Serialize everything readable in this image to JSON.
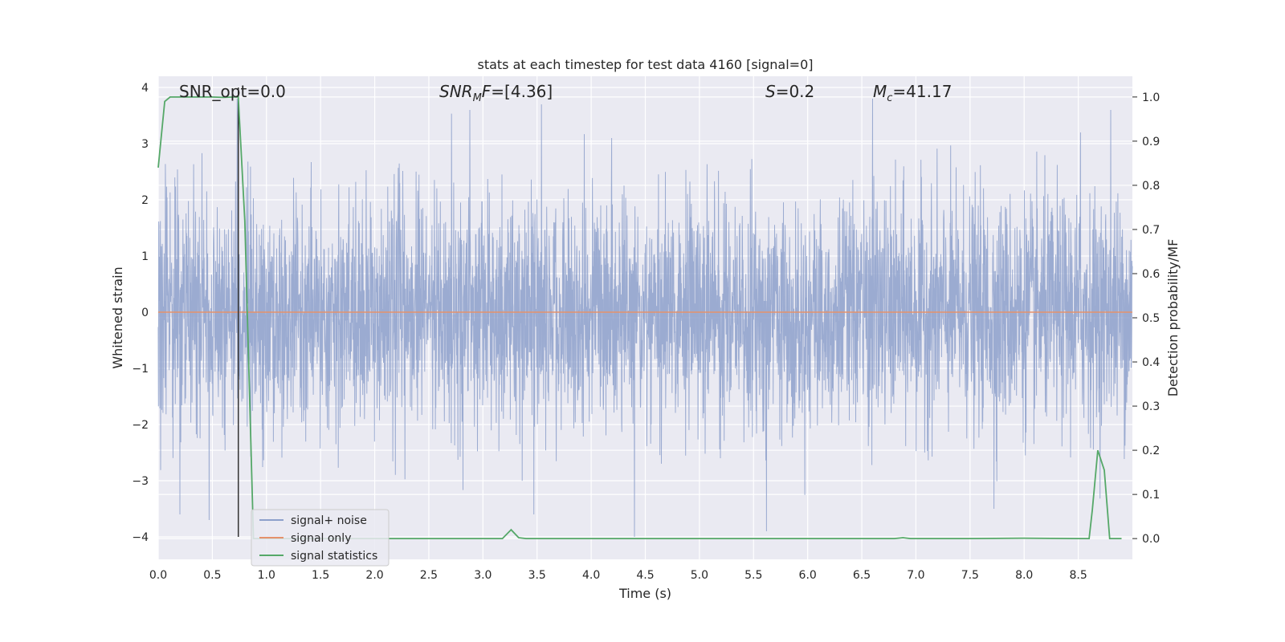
{
  "chart_data": {
    "type": "line",
    "title": "stats at each timestep for test data 4160 [signal=0]",
    "xlabel": "Time (s)",
    "ylabel": "Whitened strain",
    "y2label": "Detection probability/MF",
    "xlim": [
      0.0,
      9.0
    ],
    "ylim": [
      -4.4,
      4.2
    ],
    "y2lim": [
      -0.047,
      1.047
    ],
    "xticks": [
      "0.0",
      "0.5",
      "1.0",
      "1.5",
      "2.0",
      "2.5",
      "3.0",
      "3.5",
      "4.0",
      "4.5",
      "5.0",
      "5.5",
      "6.0",
      "6.5",
      "7.0",
      "7.5",
      "8.0",
      "8.5"
    ],
    "yticks": [
      "4",
      "3",
      "2",
      "1",
      "0",
      "−1",
      "−2",
      "−3",
      "−4"
    ],
    "y2ticks": [
      "1.0",
      "0.9",
      "0.8",
      "0.7",
      "0.6",
      "0.5",
      "0.4",
      "0.3",
      "0.2",
      "0.1",
      "0.0"
    ],
    "grid": true,
    "legend_position": "lower-left",
    "annotations": [
      {
        "id": "snr_opt",
        "text": "SNR_opt=0.0"
      },
      {
        "id": "snr_mf",
        "prefix": "SNR",
        "sub": "M",
        "suffix": "F=[4.36]"
      },
      {
        "id": "s_val",
        "prefix": "S",
        "suffix": "=0.2"
      },
      {
        "id": "mc_val",
        "prefix": "M",
        "sub": "c",
        "suffix": "=41.17"
      }
    ],
    "vline_x": 0.74,
    "series": [
      {
        "name": "signal+ noise",
        "color": "#8da0cb",
        "description_stats": {
          "approx_min": -4.0,
          "approx_max": 3.9,
          "n_points": 4096,
          "typical_abs": 1.0
        },
        "notable_peaks": [
          {
            "x": 0.2,
            "y": -3.6
          },
          {
            "x": 0.47,
            "y": -3.7
          },
          {
            "x": 0.73,
            "y": 3.8
          },
          {
            "x": 2.88,
            "y": 3.6
          },
          {
            "x": 3.47,
            "y": -3.6
          },
          {
            "x": 3.54,
            "y": 3.7
          },
          {
            "x": 4.19,
            "y": 3.1
          },
          {
            "x": 4.4,
            "y": -4.0
          },
          {
            "x": 5.62,
            "y": -3.9
          },
          {
            "x": 6.6,
            "y": 3.8
          },
          {
            "x": 7.72,
            "y": -3.5
          },
          {
            "x": 8.52,
            "y": 3.2
          },
          {
            "x": 8.8,
            "y": 3.6
          }
        ]
      },
      {
        "name": "signal only",
        "color": "#e5916b",
        "x": [
          0.0,
          9.0
        ],
        "y": [
          0.0,
          0.0
        ]
      },
      {
        "name": "signal statistics",
        "color": "#55a868",
        "axis": "right",
        "x": [
          0.0,
          0.06,
          0.11,
          0.2,
          0.3,
          0.4,
          0.5,
          0.6,
          0.7,
          0.74,
          0.8,
          0.88,
          0.95,
          1.1,
          1.5,
          2.0,
          2.5,
          3.0,
          3.18,
          3.26,
          3.33,
          3.4,
          4.0,
          5.0,
          6.0,
          6.8,
          6.88,
          6.95,
          7.5,
          8.0,
          8.5,
          8.6,
          8.63,
          8.68,
          8.74,
          8.79,
          8.9
        ],
        "y": [
          0.84,
          0.99,
          1.0,
          1.0,
          1.0,
          1.0,
          1.0,
          0.999,
          1.0,
          1.0,
          0.72,
          0.0,
          0.0,
          0.0,
          0.0,
          0.0,
          0.0,
          0.0,
          0.0,
          0.02,
          0.002,
          0.0,
          0.0,
          0.0,
          0.0,
          0.0,
          0.002,
          0.0,
          0.0,
          0.001,
          0.0,
          0.0,
          0.065,
          0.2,
          0.155,
          0.0,
          0.0
        ]
      }
    ]
  }
}
